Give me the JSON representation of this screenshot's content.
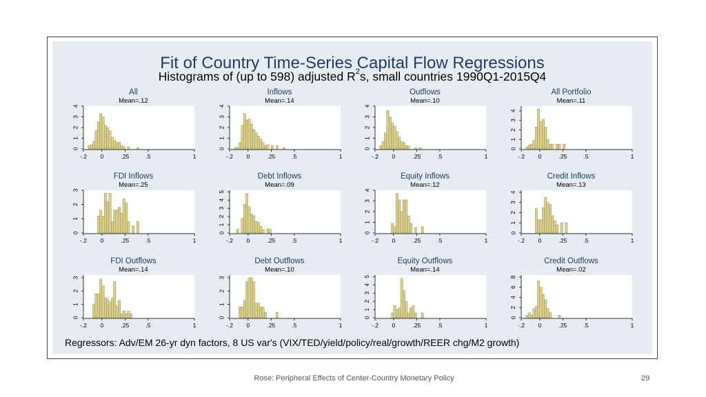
{
  "title": "Fit of Country Time-Series Capital Flow Regressions",
  "subtitle": {
    "before": "Histograms of (up to 598) adjusted R",
    "superscript": "2",
    "after": "s, small countries 1990Q1-2015Q4"
  },
  "note": "Regressors: Adv/EM 26-yr dyn factors, 8 US var's (VIX/TED/yield/policy/real/growth/REER chg/M2 growth)",
  "footer": "Rose: Peripheral Effects of Center-Country Monetary Policy",
  "page_number": "29",
  "colors": {
    "bar_fill": "#d9cf8f",
    "bar_stroke": "#8a7d3a",
    "title": "#1f3d6b",
    "panel_bg": "#e6ecf1",
    "plot_bg": "#ffffff"
  },
  "chart_data": [
    {
      "type": "bar",
      "title": "All",
      "mean_label": "Mean=.12",
      "xlim": [
        -0.2,
        1
      ],
      "ylim": [
        0,
        4
      ],
      "x_ticks": [
        -0.2,
        0,
        0.25,
        0.5,
        1
      ],
      "x_tick_labels": [
        "-.2",
        "0",
        ".25",
        ".5",
        "1"
      ],
      "y_ticks": [
        0,
        1,
        2,
        3,
        4
      ],
      "y_tick_labels": [
        "0",
        "1",
        "2",
        "3",
        "4"
      ],
      "bin_start": -0.15,
      "bin_width": 0.025,
      "values": [
        0.3,
        0.4,
        0.7,
        1.7,
        2.5,
        3.3,
        3.0,
        2.2,
        2.0,
        1.7,
        1.1,
        0.8,
        0.6,
        0.6,
        0.3,
        0.2,
        0,
        0.2,
        0,
        0,
        0,
        0.1
      ]
    },
    {
      "type": "bar",
      "title": "Inflows",
      "mean_label": "Mean=.14",
      "xlim": [
        -0.2,
        1
      ],
      "ylim": [
        0,
        4
      ],
      "x_ticks": [
        -0.2,
        0,
        0.25,
        0.5,
        1
      ],
      "x_tick_labels": [
        "-.2",
        "0",
        ".25",
        ".5",
        "1"
      ],
      "y_ticks": [
        0,
        1,
        2,
        3,
        4
      ],
      "y_tick_labels": [
        "0",
        "1",
        "2",
        "3",
        "4"
      ],
      "bin_start": -0.15,
      "bin_width": 0.025,
      "values": [
        0.15,
        0.1,
        0.6,
        2.2,
        3.3,
        2.7,
        2.8,
        2.3,
        1.8,
        1.5,
        1.2,
        0.9,
        0.6,
        0.3,
        0.4,
        0,
        0.3,
        0,
        0.3,
        0,
        0,
        0.1
      ]
    },
    {
      "type": "bar",
      "title": "Outflows",
      "mean_label": "Mean=.10",
      "xlim": [
        -0.2,
        1
      ],
      "ylim": [
        0,
        4
      ],
      "x_ticks": [
        -0.2,
        0,
        0.25,
        0.5,
        1
      ],
      "x_tick_labels": [
        "-.2",
        "0",
        ".25",
        ".5",
        "1"
      ],
      "y_ticks": [
        0,
        1,
        2,
        3,
        4
      ],
      "y_tick_labels": [
        "0",
        "1",
        "2",
        "3",
        "4"
      ],
      "bin_start": -0.15,
      "bin_width": 0.025,
      "values": [
        0.3,
        0.7,
        1.5,
        3.6,
        3.0,
        2.4,
        2.1,
        1.6,
        1.1,
        0.7,
        0.6,
        0.3,
        0.3,
        0,
        0,
        0.1,
        0,
        0.1
      ]
    },
    {
      "type": "bar",
      "title": "All Portfolio",
      "mean_label": "Mean=.11",
      "xlim": [
        -0.2,
        1
      ],
      "ylim": [
        0,
        4.5
      ],
      "x_ticks": [
        -0.2,
        0,
        0.25,
        0.5,
        1
      ],
      "x_tick_labels": [
        "-.2",
        "0",
        ".25",
        ".5",
        "1"
      ],
      "y_ticks": [
        0,
        1,
        2,
        3,
        4
      ],
      "y_tick_labels": [
        "0",
        "1",
        "2",
        "3",
        "4"
      ],
      "bin_start": -0.15,
      "bin_width": 0.025,
      "values": [
        0.2,
        0.4,
        0.5,
        0.9,
        2.3,
        4.2,
        2.9,
        3.1,
        2.3,
        1.0,
        0.5,
        0.5,
        0,
        0.5,
        0.5,
        0,
        0.5
      ]
    },
    {
      "type": "bar",
      "title": "FDI Inflows",
      "mean_label": "Mean=.25",
      "xlim": [
        -0.2,
        1
      ],
      "ylim": [
        0,
        3
      ],
      "x_ticks": [
        -0.2,
        0,
        0.25,
        0.5,
        1
      ],
      "x_tick_labels": [
        "-.2",
        "0",
        ".25",
        ".5",
        "1"
      ],
      "y_ticks": [
        0,
        1,
        2,
        3
      ],
      "y_tick_labels": [
        "0",
        "1",
        "2",
        "3"
      ],
      "bin_start": -0.05,
      "bin_width": 0.025,
      "values": [
        1.2,
        1.6,
        1.2,
        2.8,
        2.2,
        2.8,
        0.8,
        1.6,
        1.6,
        1.8,
        1.4,
        2.4,
        2.1,
        0.8,
        0,
        0.5,
        0,
        0.8
      ]
    },
    {
      "type": "bar",
      "title": "Debt Inflows",
      "mean_label": "Mean=.09",
      "xlim": [
        -0.2,
        1
      ],
      "ylim": [
        0,
        5.2
      ],
      "x_ticks": [
        -0.2,
        0,
        0.25,
        0.5,
        1
      ],
      "x_tick_labels": [
        "-.2",
        "0",
        ".25",
        ".5",
        "1"
      ],
      "y_ticks": [
        0,
        1,
        2,
        3,
        4,
        5
      ],
      "y_tick_labels": [
        "0",
        "1",
        "2",
        "3",
        "4",
        "5"
      ],
      "bin_start": -0.125,
      "bin_width": 0.025,
      "values": [
        0.5,
        0,
        1.8,
        3.5,
        4.8,
        3.2,
        2.3,
        2.1,
        1.4,
        1.3,
        0.8,
        0.4,
        0,
        0.5,
        0.5
      ]
    },
    {
      "type": "bar",
      "title": "Equity Inflows",
      "mean_label": "Mean=.12",
      "xlim": [
        -0.2,
        1
      ],
      "ylim": [
        0,
        4
      ],
      "x_ticks": [
        -0.2,
        0,
        0.25,
        0.5,
        1
      ],
      "x_tick_labels": [
        "-.2",
        "0",
        ".25",
        ".5",
        "1"
      ],
      "y_ticks": [
        0,
        1,
        2,
        3,
        4
      ],
      "y_tick_labels": [
        "0",
        "1",
        "2",
        "3",
        "4"
      ],
      "bin_start": -0.025,
      "bin_width": 0.025,
      "values": [
        0.9,
        0.6,
        3.7,
        3.1,
        2.0,
        3.1,
        3.1,
        1.6,
        0.9,
        0,
        0.5,
        0,
        0,
        0.6
      ]
    },
    {
      "type": "bar",
      "title": "Credit Inflows",
      "mean_label": "Mean=.13",
      "xlim": [
        -0.2,
        1
      ],
      "ylim": [
        0,
        4.2
      ],
      "x_ticks": [
        -0.2,
        0,
        0.25,
        0.5,
        1
      ],
      "x_tick_labels": [
        "-.2",
        "0",
        ".25",
        ".5",
        "1"
      ],
      "y_ticks": [
        0,
        1,
        2,
        3,
        4
      ],
      "y_tick_labels": [
        "0",
        "1",
        "2",
        "3",
        "4"
      ],
      "bin_start": -0.05,
      "bin_width": 0.025,
      "values": [
        2.4,
        1.3,
        1.3,
        2.5,
        3.5,
        3.0,
        2.8,
        1.7,
        1.2,
        0.8,
        0,
        1.0,
        0,
        1.0
      ]
    },
    {
      "type": "bar",
      "title": "FDI Outflows",
      "mean_label": "Mean=.14",
      "xlim": [
        -0.2,
        1
      ],
      "ylim": [
        0,
        3.2
      ],
      "x_ticks": [
        -0.2,
        0,
        0.25,
        0.5,
        1
      ],
      "x_tick_labels": [
        "-.2",
        "0",
        ".25",
        ".5",
        "1"
      ],
      "y_ticks": [
        0,
        1,
        2,
        3
      ],
      "y_tick_labels": [
        "0",
        "1",
        "2",
        "3"
      ],
      "bin_start": -0.1,
      "bin_width": 0.025,
      "values": [
        1.0,
        1.8,
        1.8,
        2.9,
        2.4,
        1.5,
        1.4,
        1.2,
        1.5,
        2.7,
        0.9,
        1.3,
        0.3,
        0.5,
        0.3,
        0.5,
        0.3
      ]
    },
    {
      "type": "bar",
      "title": "Debt Outflows",
      "mean_label": "Mean=.10",
      "xlim": [
        -0.2,
        1
      ],
      "ylim": [
        0,
        3.2
      ],
      "x_ticks": [
        -0.2,
        0,
        0.25,
        0.5,
        1
      ],
      "x_tick_labels": [
        "-.2",
        "0",
        ".25",
        ".5",
        "1"
      ],
      "y_ticks": [
        0,
        1,
        2,
        3
      ],
      "y_tick_labels": [
        "0",
        "1",
        "2",
        "3"
      ],
      "bin_start": -0.1,
      "bin_width": 0.025,
      "values": [
        0.8,
        0.8,
        1.3,
        2.7,
        3.0,
        3.0,
        2.7,
        1.1,
        1.1,
        0.8,
        0.8,
        0.4,
        0,
        0,
        0,
        0,
        0.4
      ]
    },
    {
      "type": "bar",
      "title": "Equity Outflows",
      "mean_label": "Mean=.14",
      "xlim": [
        -0.2,
        1
      ],
      "ylim": [
        0,
        5.2
      ],
      "x_ticks": [
        -0.2,
        0,
        0.25,
        0.5,
        1
      ],
      "x_tick_labels": [
        "-.2",
        "0",
        ".25",
        ".5",
        "1"
      ],
      "y_ticks": [
        0,
        1,
        2,
        3,
        4,
        5
      ],
      "y_tick_labels": [
        "0",
        "1",
        "2",
        "3",
        "4",
        "5"
      ],
      "bin_start": -0.025,
      "bin_width": 0.025,
      "values": [
        0.6,
        1.5,
        1.0,
        1.2,
        4.8,
        3.3,
        2.0,
        0.6,
        1.2,
        1.5,
        0.6,
        0,
        0,
        0.6
      ]
    },
    {
      "type": "bar",
      "title": "Credit Outflows",
      "mean_label": "Mean=.02",
      "xlim": [
        -0.2,
        1
      ],
      "ylim": [
        0,
        8.4
      ],
      "x_ticks": [
        -0.2,
        0,
        0.25,
        0.5,
        1
      ],
      "x_tick_labels": [
        "-.2",
        "0",
        ".25",
        ".5",
        "1"
      ],
      "y_ticks": [
        0,
        2,
        4,
        6,
        8
      ],
      "y_tick_labels": [
        "0",
        "2",
        "4",
        "6",
        "8"
      ],
      "bin_start": -0.15,
      "bin_width": 0.025,
      "values": [
        0.5,
        1.0,
        0.5,
        1.8,
        2.2,
        7.2,
        6.0,
        4.6,
        3.5,
        1.8,
        1.0,
        0,
        0,
        0,
        0.5
      ]
    }
  ]
}
